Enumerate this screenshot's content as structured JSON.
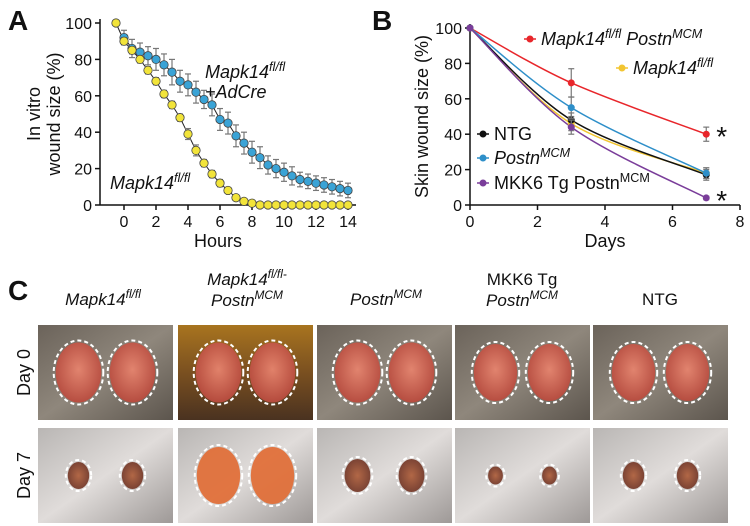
{
  "chart_data": [
    {
      "panel_label": "A",
      "type": "line",
      "xlabel": "Hours",
      "ylabel": [
        [
          "In vitro"
        ],
        [
          "wound size (%)"
        ]
      ],
      "x": [
        -0.5,
        0,
        0.5,
        1,
        1.5,
        2,
        2.5,
        3,
        3.5,
        4,
        4.5,
        5,
        5.5,
        6,
        6.5,
        7,
        7.5,
        8,
        8.5,
        9,
        9.5,
        10,
        10.5,
        11,
        11.5,
        12,
        12.5,
        13,
        13.5,
        14
      ],
      "xlim": [
        -1.5,
        14.5
      ],
      "ylim": [
        0,
        100
      ],
      "xticks": [
        0,
        2,
        4,
        6,
        8,
        10,
        12,
        14
      ],
      "yticks": [
        0,
        20,
        40,
        60,
        80,
        100
      ],
      "series": [
        {
          "name": [
            [
              "Mapk14",
              "fl/fl"
            ],
            [
              "+AdCre"
            ]
          ],
          "color": "#3aa3d6",
          "values": [
            null,
            92,
            86,
            84,
            82,
            80,
            77,
            73,
            68,
            66,
            62,
            58,
            55,
            47,
            45,
            38,
            34,
            29,
            26,
            22,
            20,
            18,
            16,
            14,
            13,
            12,
            11,
            10,
            9,
            8
          ],
          "errors": [
            null,
            4,
            5,
            5,
            5,
            6,
            6,
            7,
            6,
            6,
            6,
            5,
            6,
            6,
            6,
            6,
            6,
            6,
            6,
            5,
            5,
            5,
            5,
            4,
            4,
            4,
            4,
            4,
            4,
            4
          ]
        },
        {
          "name": [
            [
              "Mapk14",
              "fl/fl"
            ]
          ],
          "color": "#f2e43a",
          "values": [
            100,
            90,
            85,
            80,
            74,
            68,
            61,
            55,
            48,
            39,
            30,
            23,
            17,
            12,
            8,
            4,
            2,
            1,
            0,
            0,
            0,
            0,
            0,
            0,
            0,
            0,
            0,
            0,
            0,
            0
          ],
          "errors": [
            0,
            2,
            2,
            2,
            2,
            2,
            2,
            2,
            2,
            3,
            3,
            2,
            2,
            2,
            1,
            1,
            1,
            1,
            0,
            0,
            0,
            0,
            0,
            0,
            0,
            0,
            0,
            0,
            0,
            0
          ]
        }
      ]
    },
    {
      "panel_label": "B",
      "type": "line",
      "xlabel": "Days",
      "ylabel": [
        [
          "Skin wound size (%)"
        ]
      ],
      "x": [
        0,
        3,
        7
      ],
      "xlim": [
        0,
        8
      ],
      "ylim": [
        0,
        100
      ],
      "xticks": [
        0,
        2,
        4,
        6,
        8
      ],
      "yticks": [
        0,
        20,
        40,
        60,
        80,
        100
      ],
      "series": [
        {
          "name": [
            [
              "Mapk14",
              "fl/fl",
              " Postn",
              "MCM"
            ]
          ],
          "color": "#e8262b",
          "values": [
            100,
            69,
            40
          ],
          "errors": [
            0,
            8,
            4
          ]
        },
        {
          "name": [
            [
              "Mapk14",
              "fl/fl"
            ]
          ],
          "color": "#f2c531",
          "values": [
            100,
            46,
            18
          ],
          "errors": [
            0,
            4,
            3
          ]
        },
        {
          "name": "NTG",
          "color": "#111111",
          "values": [
            100,
            48,
            17
          ],
          "errors": [
            0,
            4,
            3
          ]
        },
        {
          "name": [
            [
              "Postn",
              "MCM"
            ]
          ],
          "color": "#2e8fc9",
          "values": [
            100,
            55,
            18
          ],
          "errors": [
            0,
            6,
            3
          ]
        },
        {
          "name": [
            [
              "MKK6 Tg Postn",
              "MCM"
            ]
          ],
          "color": "#7a3d9a",
          "values": [
            100,
            44,
            4
          ],
          "errors": [
            0,
            4,
            1
          ]
        }
      ],
      "annotations": [
        "*",
        "*"
      ]
    }
  ],
  "panel_c": {
    "panel_label": "C",
    "columns": [
      [
        [
          "Mapk14",
          "fl/fl"
        ]
      ],
      [
        [
          "Mapk14",
          "fl/fl-"
        ],
        [
          "Postn",
          "MCM"
        ]
      ],
      [
        [
          "Postn",
          "MCM"
        ]
      ],
      [
        [
          "MKK6 Tg"
        ],
        [
          "Postn",
          "MCM"
        ]
      ],
      "NTG"
    ],
    "rows": [
      "Day 0",
      "Day 7"
    ]
  }
}
